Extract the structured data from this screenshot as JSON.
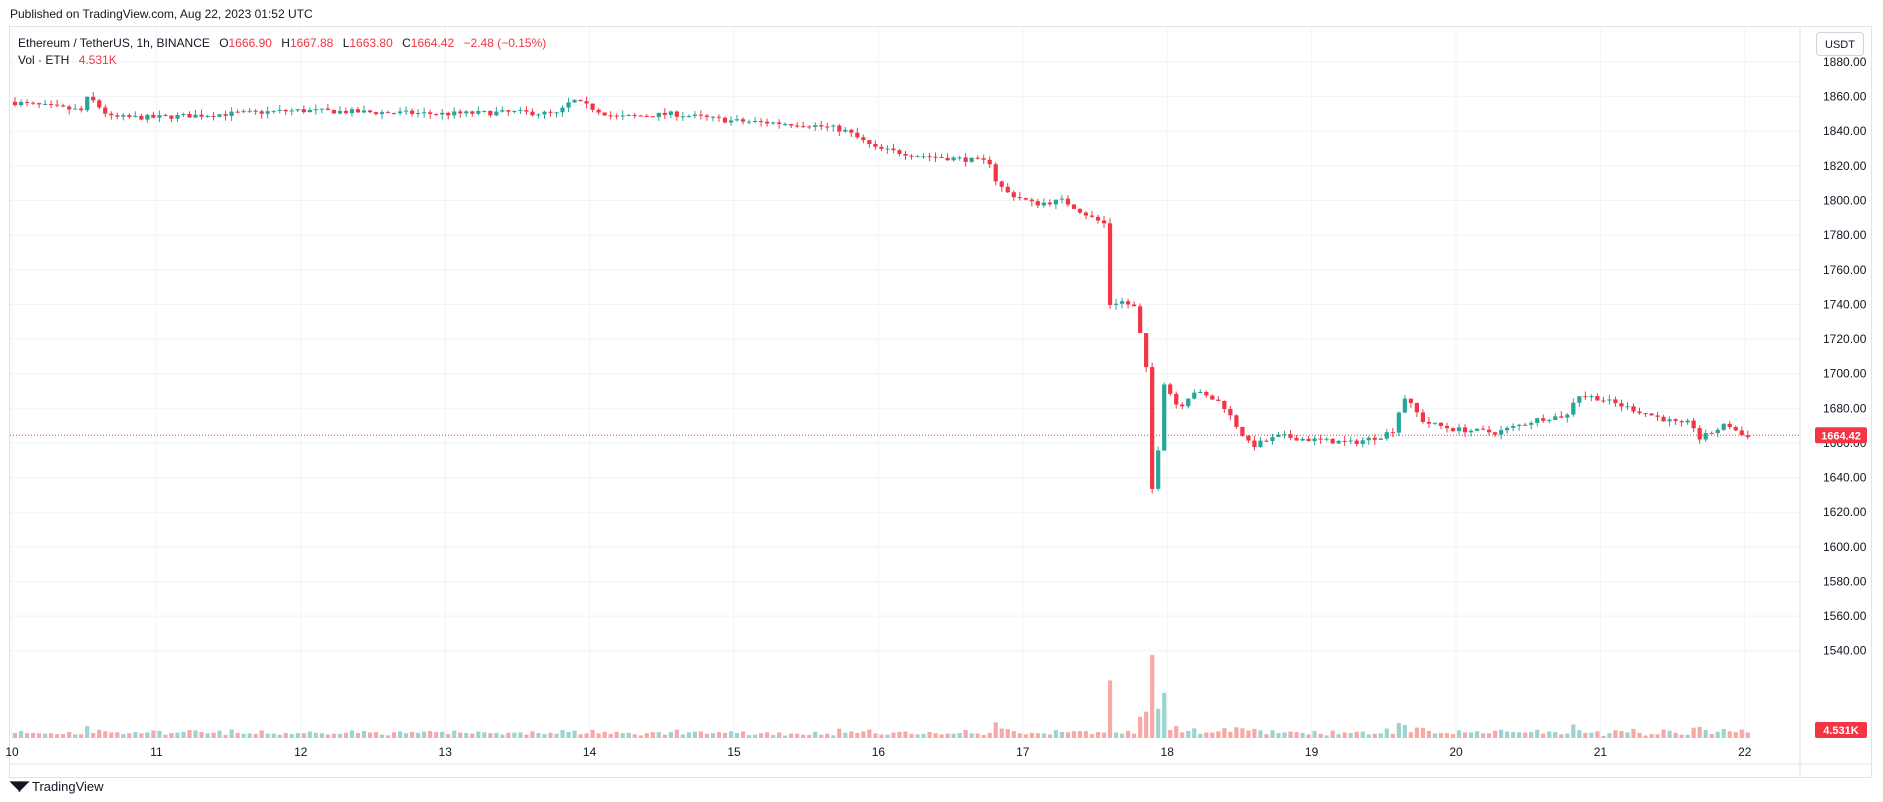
{
  "header": {
    "published": "Published on TradingView.com, Aug 22, 2023 01:52 UTC"
  },
  "legend": {
    "symbol": "Ethereum / TetherUS, 1h, BINANCE",
    "open_label": "O",
    "open": "1666.90",
    "high_label": "H",
    "high": "1667.88",
    "low_label": "L",
    "low": "1663.80",
    "close_label": "C",
    "close": "1664.42",
    "change": "−2.48 (−0.15%)"
  },
  "volume_legend": {
    "label": "Vol · ETH",
    "value": "4.531K"
  },
  "currency_button": "USDT",
  "footer": {
    "brand": "TradingView"
  },
  "colors": {
    "up": "#26a69a",
    "down": "#f23645",
    "vol_up": "#9cd5cf",
    "vol_down": "#f7a9a7",
    "grid": "#f0f3fa"
  },
  "chart_data": {
    "type": "candlestick",
    "title": "",
    "ylim": [
      1500,
      1895
    ],
    "y_ticks": [
      "1880.00",
      "1860.00",
      "1840.00",
      "1820.00",
      "1800.00",
      "1780.00",
      "1760.00",
      "1740.00",
      "1720.00",
      "1700.00",
      "1680.00",
      "1660.00",
      "1640.00",
      "1620.00",
      "1600.00",
      "1580.00",
      "1560.00",
      "1540.00"
    ],
    "x_ticks": [
      "10",
      "11",
      "12",
      "13",
      "14",
      "15",
      "16",
      "17",
      "18",
      "19",
      "20",
      "21",
      "22"
    ],
    "x_tick_day_index": [
      0,
      1,
      2,
      3,
      4,
      5,
      6,
      7,
      8,
      9,
      10,
      11,
      12
    ],
    "last_price_label": "1664.42",
    "last_price": 1664.42,
    "volume_label": "4.531K",
    "anchors_days": [
      0,
      0.5,
      0.55,
      0.7,
      1.0,
      1.5,
      2.0,
      2.5,
      3.0,
      3.5,
      3.8,
      3.9,
      4.2,
      4.6,
      5.0,
      5.5,
      5.7,
      5.8,
      6.0,
      6.3,
      6.6,
      6.8,
      6.83,
      6.9,
      7.1,
      7.3,
      7.5,
      7.6,
      7.62,
      7.7,
      7.8,
      7.85,
      7.9,
      7.92,
      8.0,
      8.1,
      8.2,
      8.4,
      8.5,
      8.6,
      8.8,
      9.0,
      9.3,
      9.5,
      9.6,
      9.65,
      9.8,
      10.0,
      10.3,
      10.6,
      10.8,
      10.85,
      11.0,
      11.3,
      11.6,
      11.65,
      11.7,
      11.9,
      12.0
    ],
    "anchors_close": [
      1857,
      1852,
      1860,
      1848,
      1848,
      1850,
      1852,
      1851,
      1850,
      1851,
      1850,
      1858,
      1848,
      1850,
      1846,
      1844,
      1842,
      1840,
      1830,
      1826,
      1824,
      1822,
      1812,
      1805,
      1798,
      1800,
      1790,
      1786,
      1740,
      1742,
      1738,
      1715,
      1690,
      1622,
      1695,
      1680,
      1690,
      1683,
      1670,
      1658,
      1664,
      1662,
      1660,
      1664,
      1668,
      1688,
      1672,
      1668,
      1666,
      1674,
      1676,
      1688,
      1686,
      1678,
      1670,
      1673,
      1662,
      1671,
      1664.42
    ],
    "days": 12.05,
    "hours_per_day": 24
  }
}
